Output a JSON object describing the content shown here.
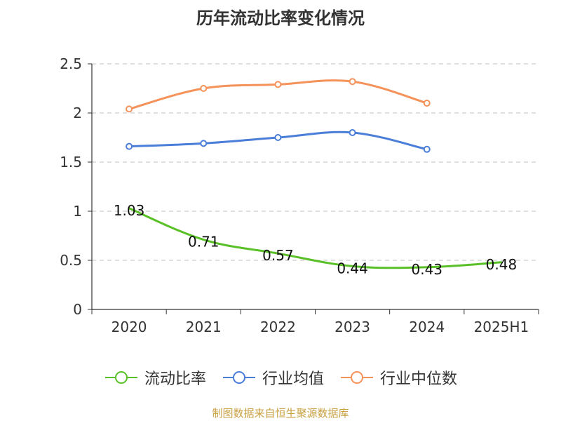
{
  "title": "历年流动比率变化情况",
  "source": "制图数据来自恒生聚源数据库",
  "colors": {
    "series1": "#5ac027",
    "series2": "#4a7ed8",
    "series3": "#f5925a"
  },
  "chart_data": {
    "type": "line",
    "title": "历年流动比率变化情况",
    "categories": [
      "2020",
      "2021",
      "2022",
      "2023",
      "2024",
      "2025H1"
    ],
    "ylim": [
      0,
      2.5
    ],
    "yticks": [
      "0",
      "0.5",
      "1",
      "1.5",
      "2",
      "2.5"
    ],
    "grid": true,
    "legend_position": "bottom",
    "series": [
      {
        "name": "流动比率",
        "values": [
          1.03,
          0.71,
          0.57,
          0.44,
          0.43,
          0.48
        ],
        "labels": [
          "1.03",
          "0.71",
          "0.57",
          "0.44",
          "0.43",
          "0.48"
        ],
        "color": "#5ac027",
        "markers": false
      },
      {
        "name": "行业均值",
        "values": [
          1.66,
          1.69,
          1.75,
          1.8,
          1.63,
          null
        ],
        "color": "#4a7ed8",
        "markers": true
      },
      {
        "name": "行业中位数",
        "values": [
          2.04,
          2.25,
          2.29,
          2.32,
          2.1,
          null
        ],
        "color": "#f5925a",
        "markers": true
      }
    ]
  }
}
